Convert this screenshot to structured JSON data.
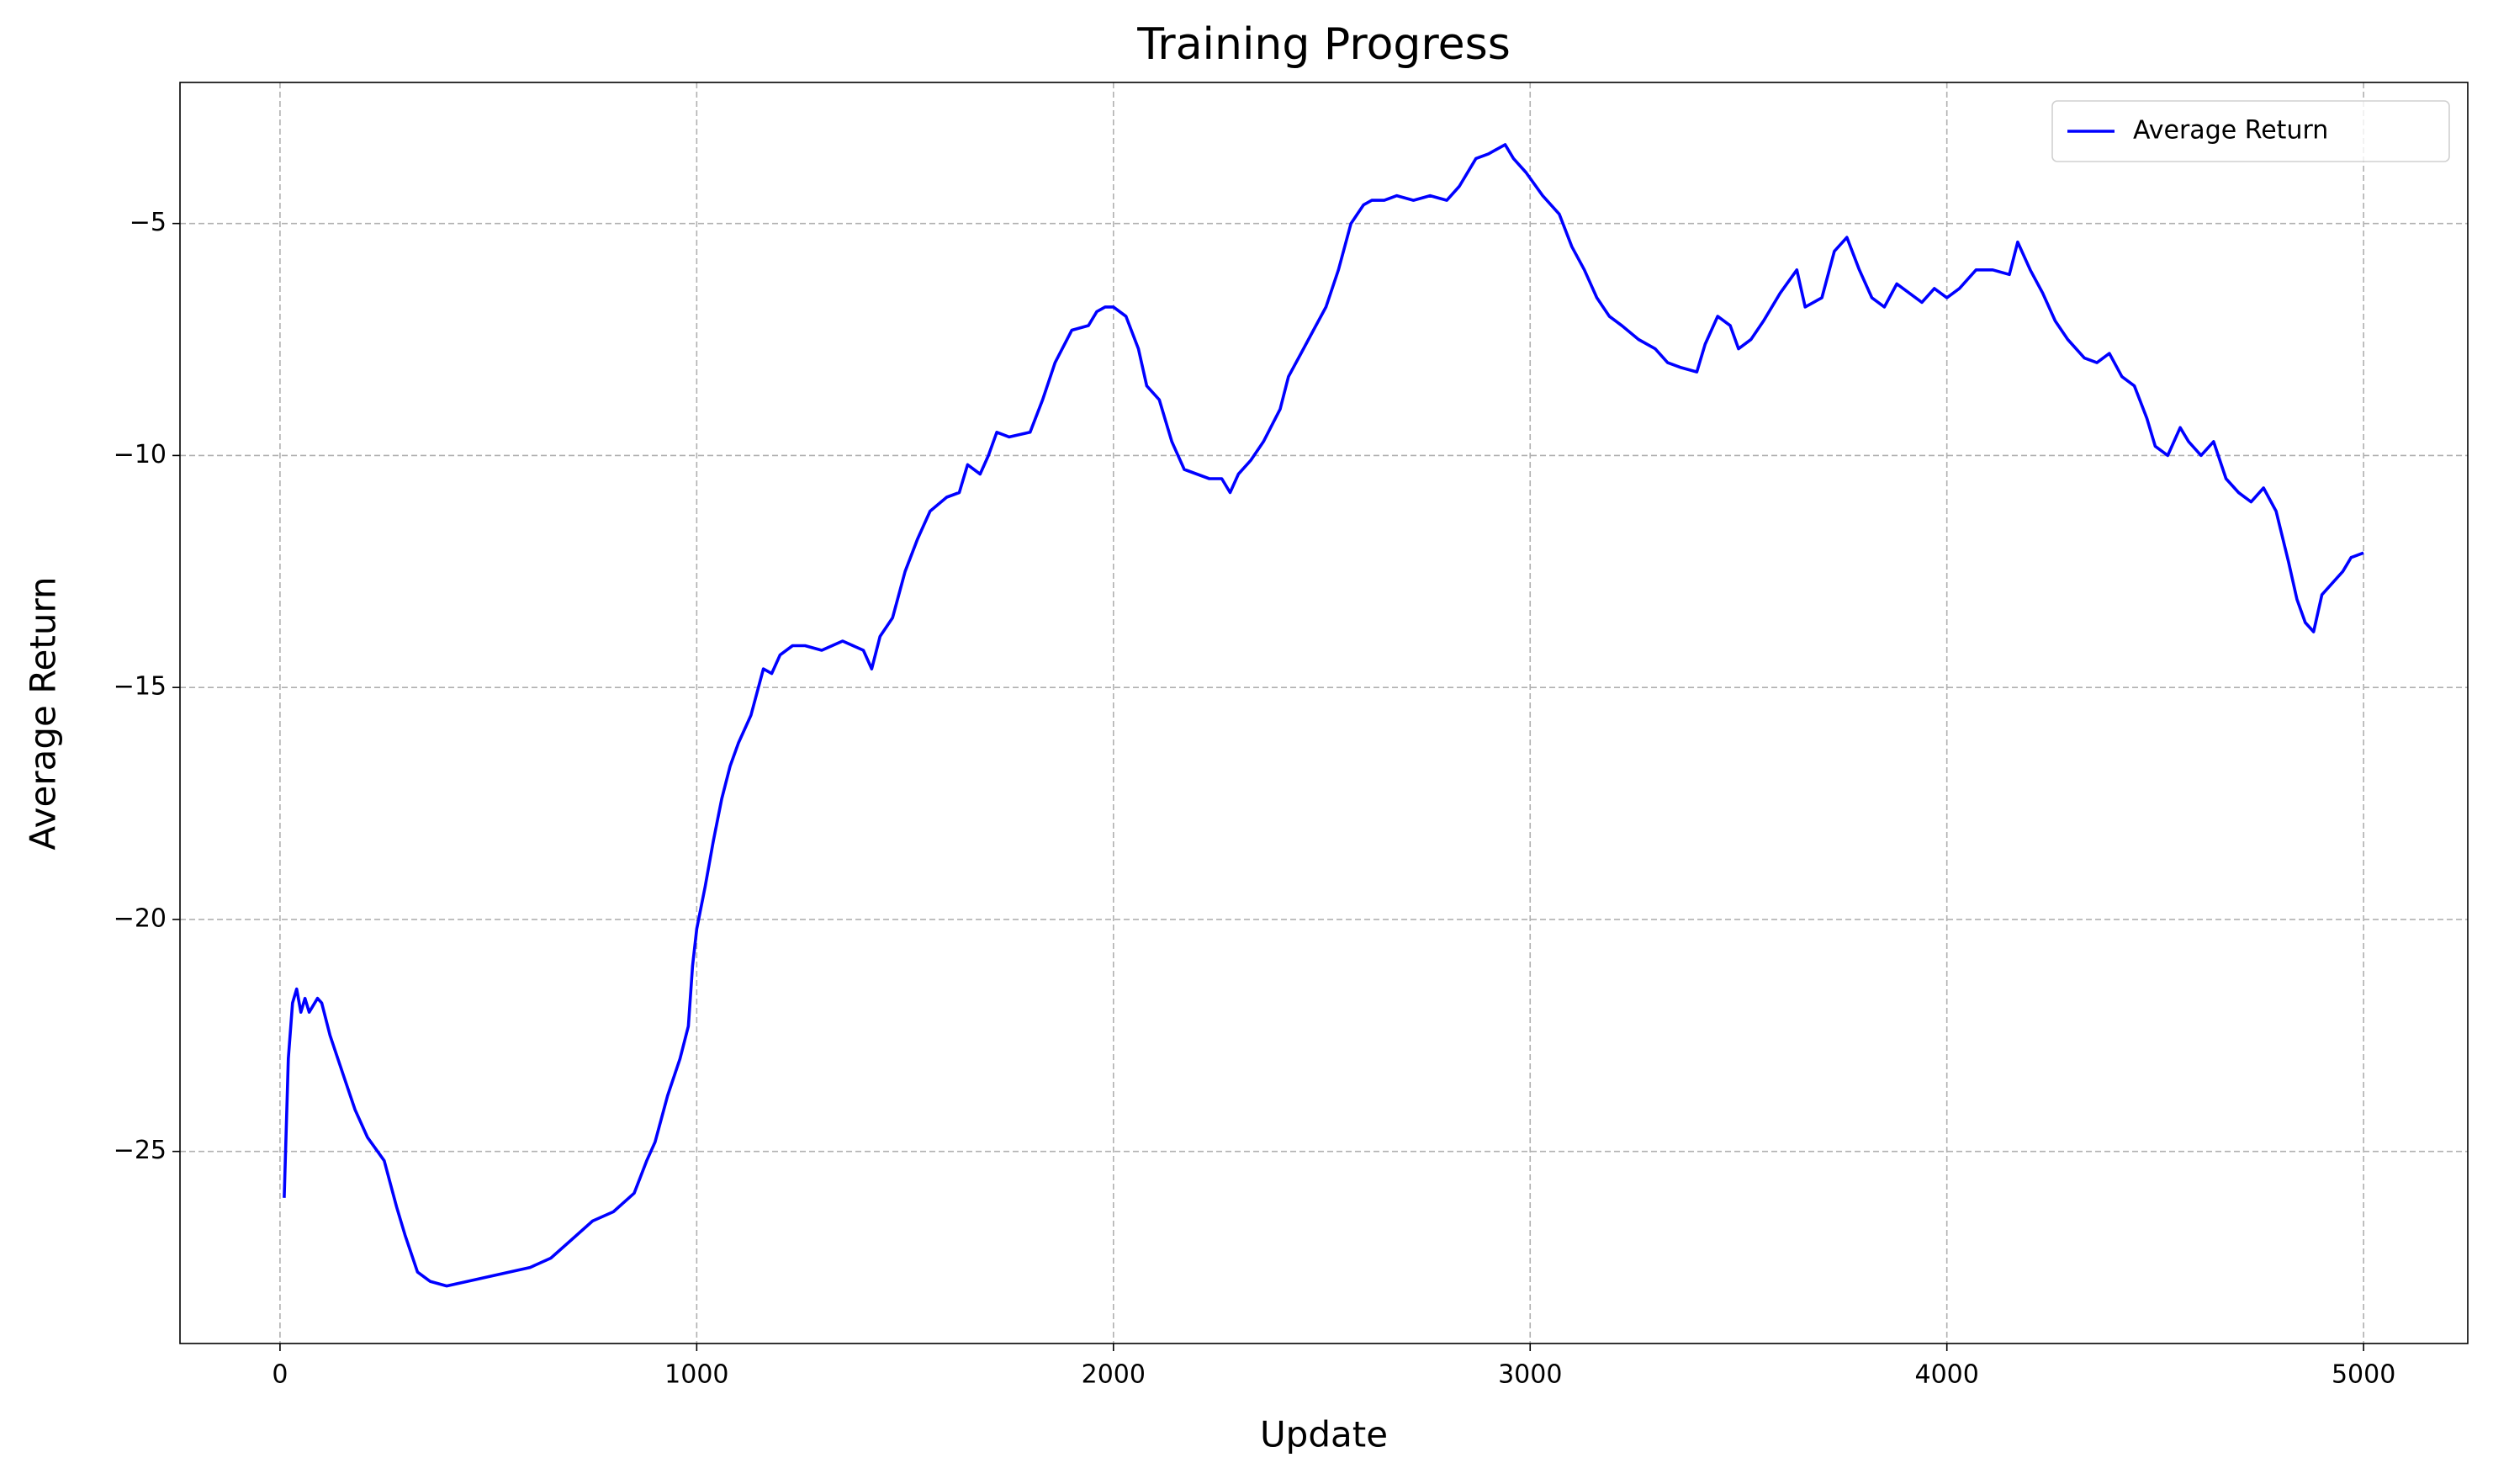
{
  "chart_data": {
    "type": "line",
    "title": "Training Progress",
    "x_label": "Update",
    "y_label": "Average Return",
    "x": [
      10,
      20,
      30,
      40,
      50,
      60,
      70,
      90,
      100,
      120,
      150,
      180,
      210,
      250,
      280,
      300,
      330,
      360,
      400,
      450,
      500,
      550,
      600,
      650,
      700,
      750,
      800,
      850,
      880,
      900,
      930,
      960,
      980,
      990,
      1000,
      1020,
      1040,
      1060,
      1080,
      1100,
      1130,
      1160,
      1180,
      1200,
      1230,
      1260,
      1300,
      1350,
      1400,
      1420,
      1440,
      1470,
      1500,
      1530,
      1560,
      1600,
      1630,
      1650,
      1680,
      1700,
      1720,
      1750,
      1800,
      1830,
      1860,
      1900,
      1940,
      1960,
      1980,
      2000,
      2030,
      2060,
      2080,
      2110,
      2140,
      2170,
      2200,
      2230,
      2260,
      2280,
      2300,
      2330,
      2360,
      2400,
      2420,
      2450,
      2480,
      2510,
      2540,
      2570,
      2600,
      2620,
      2650,
      2680,
      2720,
      2760,
      2800,
      2830,
      2870,
      2900,
      2940,
      2960,
      2990,
      3030,
      3070,
      3100,
      3130,
      3160,
      3190,
      3220,
      3260,
      3300,
      3330,
      3360,
      3400,
      3420,
      3450,
      3480,
      3500,
      3530,
      3560,
      3600,
      3640,
      3660,
      3700,
      3730,
      3760,
      3790,
      3820,
      3850,
      3880,
      3910,
      3940,
      3970,
      4000,
      4030,
      4070,
      4110,
      4150,
      4170,
      4200,
      4230,
      4260,
      4290,
      4330,
      4360,
      4390,
      4420,
      4450,
      4480,
      4500,
      4530,
      4560,
      4580,
      4610,
      4640,
      4670,
      4700,
      4730,
      4760,
      4790,
      4820,
      4840,
      4860,
      4880,
      4900,
      4930,
      4950,
      4970,
      5000
    ],
    "series": [
      {
        "name": "Average Return",
        "color": "#0000ff",
        "values": [
          -26.0,
          -23.0,
          -21.8,
          -21.5,
          -22.0,
          -21.7,
          -22.0,
          -21.7,
          -21.8,
          -22.5,
          -23.3,
          -24.1,
          -24.7,
          -25.2,
          -26.2,
          -26.8,
          -27.6,
          -27.8,
          -27.9,
          -27.8,
          -27.7,
          -27.6,
          -27.5,
          -27.3,
          -26.9,
          -26.5,
          -26.3,
          -25.9,
          -25.2,
          -24.8,
          -23.8,
          -23.0,
          -22.3,
          -21.0,
          -20.2,
          -19.3,
          -18.3,
          -17.4,
          -16.7,
          -16.2,
          -15.6,
          -14.6,
          -14.7,
          -14.3,
          -14.1,
          -14.1,
          -14.2,
          -14.0,
          -14.2,
          -14.6,
          -13.9,
          -13.5,
          -12.5,
          -11.8,
          -11.2,
          -10.9,
          -10.8,
          -10.2,
          -10.4,
          -10.0,
          -9.5,
          -9.6,
          -9.5,
          -8.8,
          -8.0,
          -7.3,
          -7.2,
          -6.9,
          -6.8,
          -6.8,
          -7.0,
          -7.7,
          -8.5,
          -8.8,
          -9.7,
          -10.3,
          -10.4,
          -10.5,
          -10.5,
          -10.8,
          -10.4,
          -10.1,
          -9.7,
          -9.0,
          -8.3,
          -7.8,
          -7.3,
          -6.8,
          -6.0,
          -5.0,
          -4.6,
          -4.5,
          -4.5,
          -4.4,
          -4.5,
          -4.4,
          -4.5,
          -4.2,
          -3.6,
          -3.5,
          -3.3,
          -3.6,
          -3.9,
          -4.4,
          -4.8,
          -5.5,
          -6.0,
          -6.6,
          -7.0,
          -7.2,
          -7.5,
          -7.7,
          -8.0,
          -8.1,
          -8.2,
          -7.6,
          -7.0,
          -7.2,
          -7.7,
          -7.5,
          -7.1,
          -6.5,
          -6.0,
          -6.8,
          -6.6,
          -5.6,
          -5.3,
          -6.0,
          -6.6,
          -6.8,
          -6.3,
          -6.5,
          -6.7,
          -6.4,
          -6.6,
          -6.4,
          -6.0,
          -6.0,
          -6.1,
          -5.4,
          -6.0,
          -6.5,
          -7.1,
          -7.5,
          -7.9,
          -8.0,
          -7.8,
          -8.3,
          -8.5,
          -9.2,
          -9.8,
          -10.0,
          -9.4,
          -9.7,
          -10.0,
          -9.7,
          -10.5,
          -10.8,
          -11.0,
          -10.7,
          -11.2,
          -12.3,
          -13.1,
          -13.6,
          -13.8,
          -13.0,
          -12.7,
          -12.5,
          -12.2,
          -12.1
        ]
      }
    ],
    "xlim": [
      -240,
      5250
    ],
    "xticks": [
      0,
      1000,
      2000,
      3000,
      4000,
      5000
    ],
    "ylim": [
      -29.14,
      -1.96
    ],
    "yticks": [
      {
        "value": -25,
        "label": "−25"
      },
      {
        "value": -20,
        "label": "−20"
      },
      {
        "value": -15,
        "label": "−15"
      },
      {
        "value": -10,
        "label": "−10"
      },
      {
        "value": -5,
        "label": "−5"
      }
    ],
    "grid": true,
    "legend": "upper right"
  }
}
